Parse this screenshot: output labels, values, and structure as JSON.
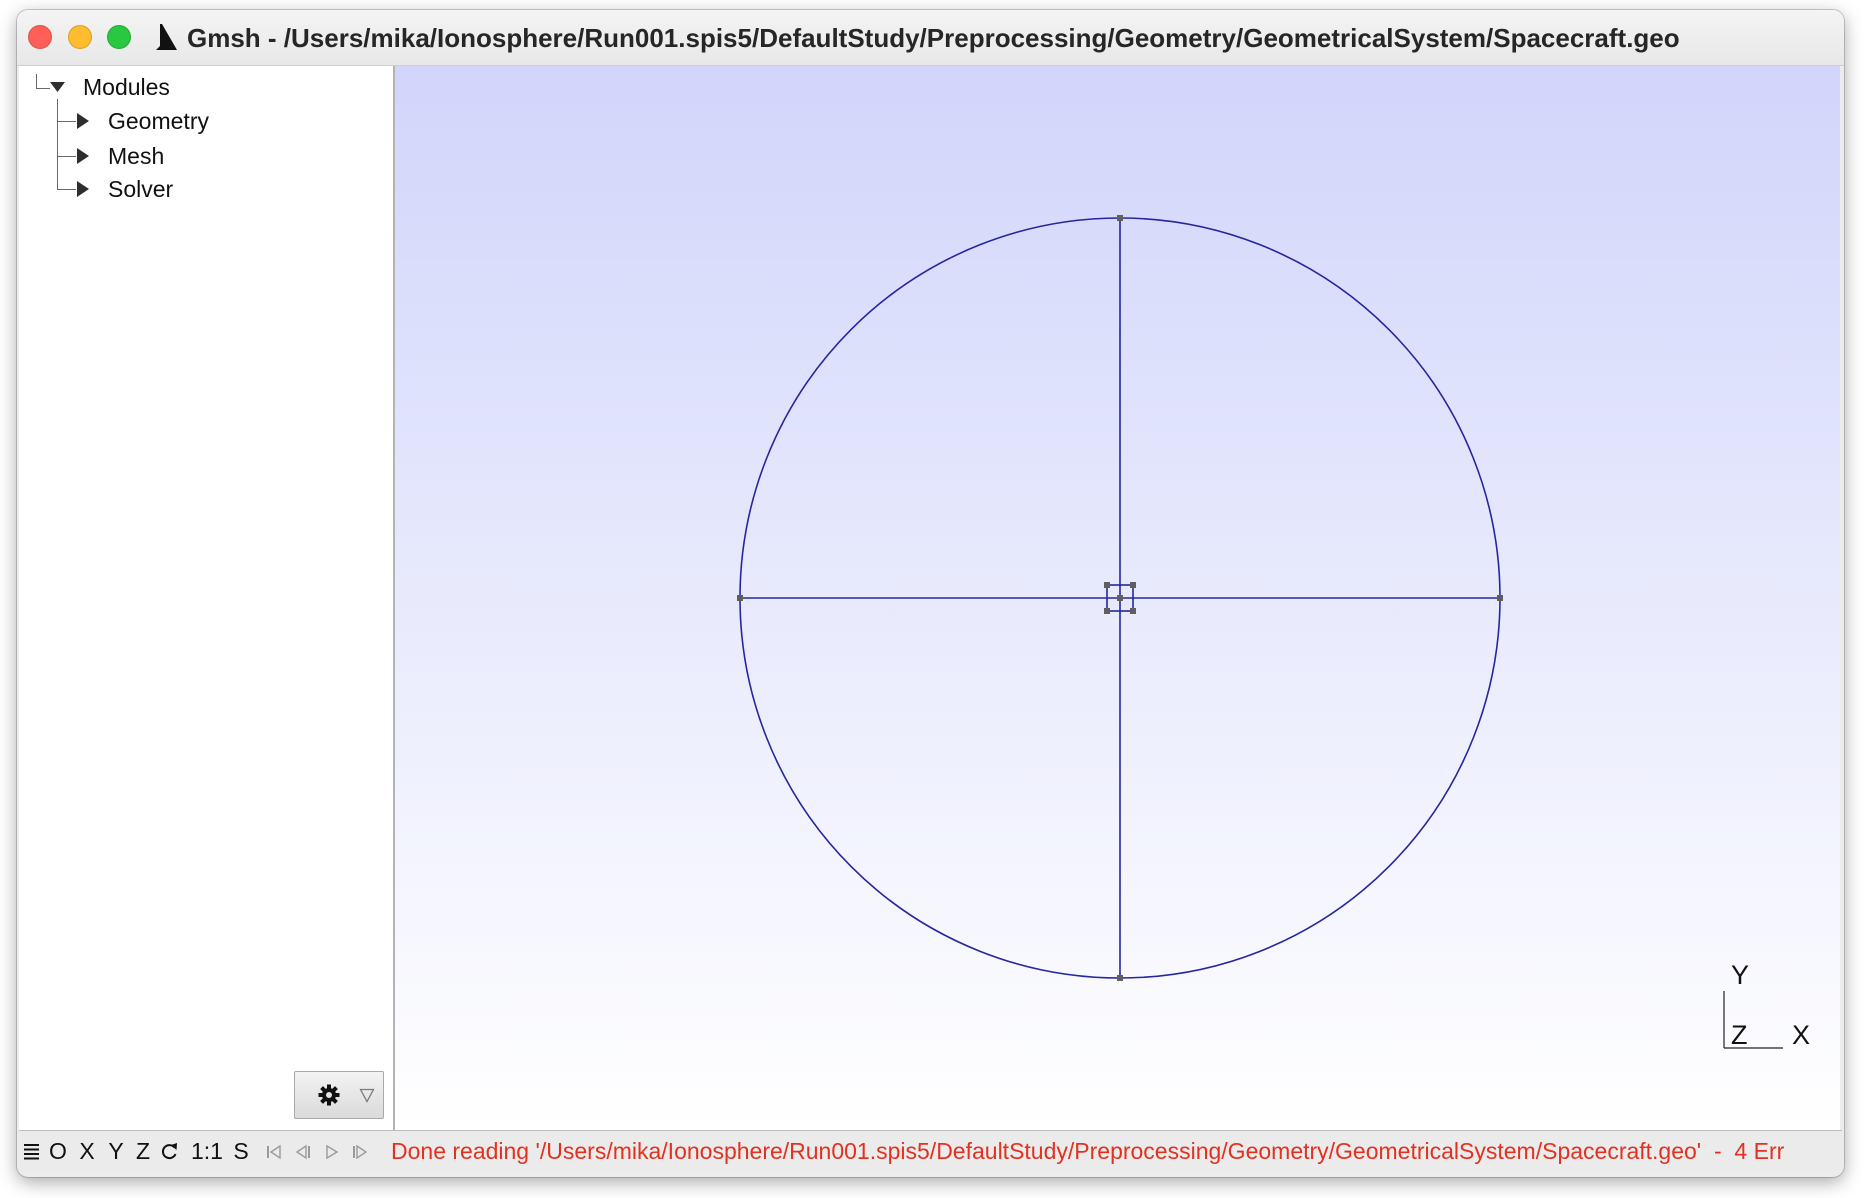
{
  "window": {
    "title": "Gmsh - /Users/mika/Ionosphere/Run001.spis5/DefaultStudy/Preprocessing/Geometry/GeometricalSystem/Spacecraft.geo",
    "app_icon": "gmsh-sail-icon",
    "controls": [
      "close-button",
      "minimize-button",
      "zoom-button"
    ]
  },
  "tree": {
    "root": {
      "label": "Modules",
      "expanded": true
    },
    "children": [
      {
        "label": "Geometry",
        "expanded": false
      },
      {
        "label": "Mesh",
        "expanded": false
      },
      {
        "label": "Solver",
        "expanded": false
      }
    ]
  },
  "options_button": {
    "icon": "gear-icon",
    "menu_icon": "triangle-down-icon"
  },
  "graphics": {
    "axes": {
      "y": "Y",
      "z": "Z",
      "x": "X"
    }
  },
  "status_bar": {
    "menu_icon": "menu-lines-icon",
    "buttons": {
      "o": "O",
      "x": "X",
      "y": "Y",
      "z": "Z",
      "rotate_icon": "rotate-icon",
      "one_to_one": "1:1",
      "s": "S"
    },
    "playback_icons": [
      "first-step-icon",
      "previous-step-icon",
      "play-icon",
      "next-step-icon"
    ],
    "message": "Done reading '/Users/mika/Ionosphere/Run001.spis5/DefaultStudy/Preprocessing/Geometry/GeometricalSystem/Spacecraft.geo'  -  4 Err"
  },
  "colors": {
    "close": "#fe5f57",
    "minimize": "#febc2e",
    "zoom": "#28c840",
    "graphics_top": "#d1d5fa",
    "graphics_bottom": "#ffffff",
    "curves": "#26269e",
    "points": "#5f5f5f",
    "status_message": "#e4311f",
    "disabled_icon": "#9a9a9a"
  }
}
